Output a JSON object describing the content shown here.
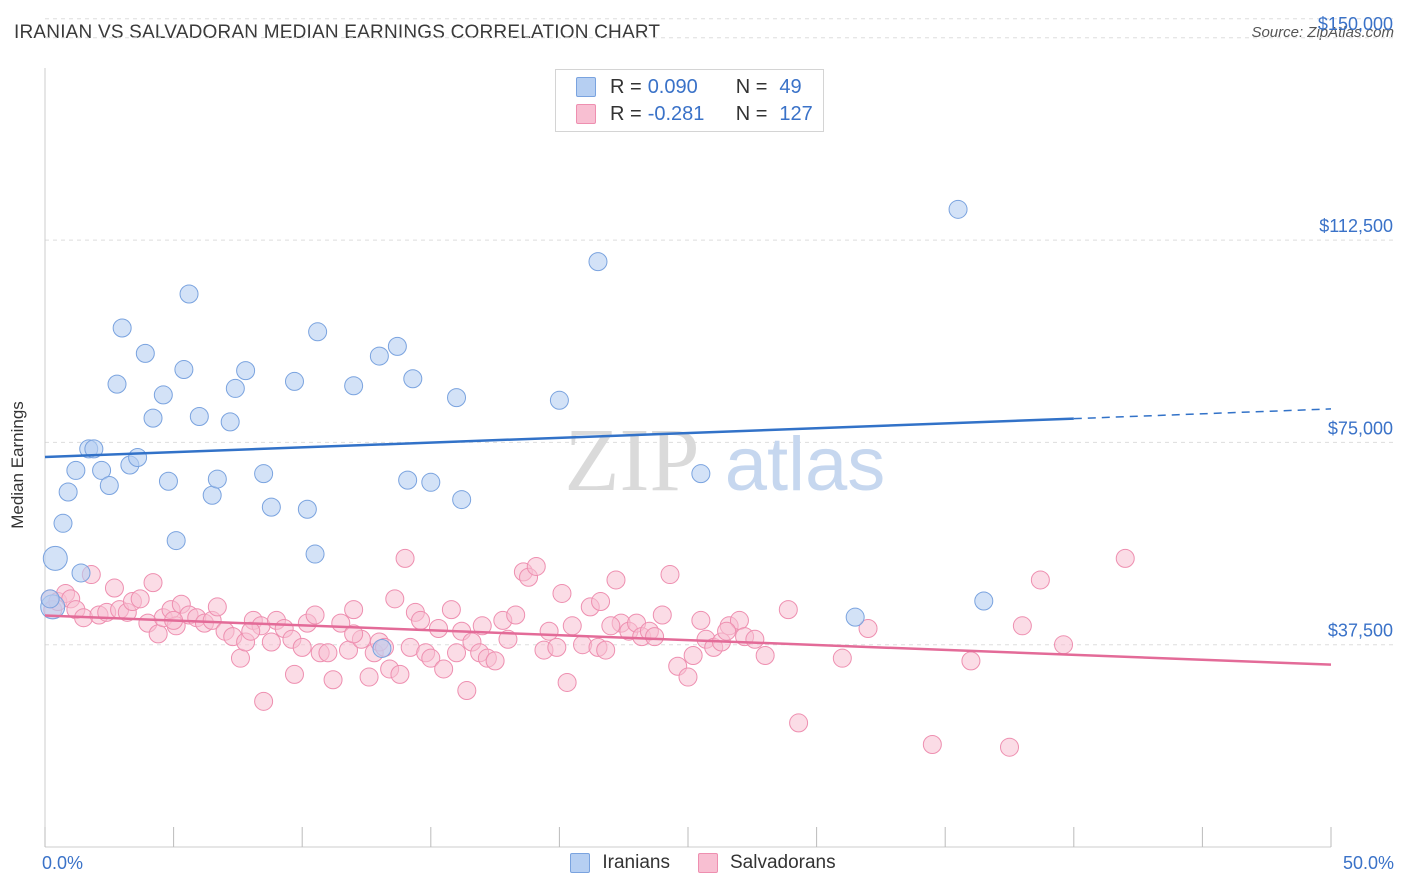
{
  "title": "IRANIAN VS SALVADORAN MEDIAN EARNINGS CORRELATION CHART",
  "source": "Source: ZipAtlas.com",
  "watermark": {
    "zip": "ZIP",
    "atlas": "atlas"
  },
  "colors": {
    "blue_fill": "#b6cff2",
    "blue_stroke": "#7aa3df",
    "blue_line": "#3272c8",
    "pink_fill": "#f8bfd2",
    "pink_stroke": "#ee8fb0",
    "pink_line": "#e36b98",
    "axis_text": "#3a72c8",
    "grid": "#dddddd"
  },
  "legend": {
    "rows": [
      {
        "r_label": "R =",
        "r_value": "0.090",
        "n_label": "N =",
        "n_value": "49"
      },
      {
        "r_label": "R =",
        "r_value": "-0.281",
        "n_label": "N =",
        "n_value": "127"
      }
    ]
  },
  "bottom_legend": [
    "Iranians",
    "Salvadorans"
  ],
  "chart_data": {
    "type": "scatter",
    "title": "IRANIAN VS SALVADORAN MEDIAN EARNINGS CORRELATION CHART",
    "xlabel": "",
    "ylabel": "Median Earnings",
    "xlim": [
      0,
      50
    ],
    "ylim": [
      0,
      157000
    ],
    "x_ticks": [
      0,
      5,
      10,
      15,
      20,
      25,
      30,
      35,
      40,
      45,
      50
    ],
    "x_tick_labels_shown": {
      "0": "0.0%",
      "50": "50.0%"
    },
    "y_ticks": [
      37500,
      75000,
      112500,
      150000
    ],
    "y_tick_labels": [
      "$37,500",
      "$75,000",
      "$112,500",
      "$150,000"
    ],
    "grid": true,
    "legend_position": "top-center",
    "series": [
      {
        "name": "Iranians",
        "r": 0.09,
        "n": 49,
        "trend": {
          "x_start": 0,
          "y_start": 72300,
          "x_end": 40,
          "y_end": 79400,
          "dashed_to_x": 50,
          "dashed_to_y": 81200
        },
        "points": [
          [
            0.3,
            44500
          ],
          [
            0.4,
            53500
          ],
          [
            0.7,
            60000
          ],
          [
            0.9,
            65800
          ],
          [
            1.2,
            69800
          ],
          [
            1.4,
            50800
          ],
          [
            1.7,
            73800
          ],
          [
            1.9,
            73800
          ],
          [
            2.2,
            69800
          ],
          [
            2.5,
            67000
          ],
          [
            2.8,
            85800
          ],
          [
            3.0,
            96200
          ],
          [
            3.3,
            70800
          ],
          [
            3.6,
            72200
          ],
          [
            3.9,
            91500
          ],
          [
            4.2,
            79500
          ],
          [
            4.6,
            83800
          ],
          [
            4.8,
            67800
          ],
          [
            5.1,
            56800
          ],
          [
            5.4,
            88500
          ],
          [
            5.6,
            102500
          ],
          [
            6.0,
            79800
          ],
          [
            6.5,
            65200
          ],
          [
            6.7,
            68200
          ],
          [
            7.2,
            78800
          ],
          [
            7.4,
            85000
          ],
          [
            7.8,
            88300
          ],
          [
            8.5,
            69200
          ],
          [
            8.8,
            63000
          ],
          [
            9.7,
            86300
          ],
          [
            10.2,
            62600
          ],
          [
            10.6,
            95500
          ],
          [
            10.5,
            54300
          ],
          [
            12.0,
            85500
          ],
          [
            13.0,
            91000
          ],
          [
            13.7,
            92800
          ],
          [
            13.1,
            36800
          ],
          [
            14.3,
            86800
          ],
          [
            14.1,
            68000
          ],
          [
            15.0,
            67600
          ],
          [
            16.0,
            83300
          ],
          [
            16.2,
            64400
          ],
          [
            20.0,
            82800
          ],
          [
            21.5,
            108500
          ],
          [
            25.5,
            69200
          ],
          [
            31.5,
            42600
          ],
          [
            35.5,
            118200
          ],
          [
            36.5,
            45600
          ],
          [
            0.2,
            46000
          ]
        ]
      },
      {
        "name": "Salvadorans",
        "r": -0.281,
        "n": 127,
        "trend": {
          "x_start": 0,
          "y_start": 42900,
          "x_end": 50,
          "y_end": 33800
        },
        "points": [
          [
            0.2,
            46000
          ],
          [
            0.3,
            44000
          ],
          [
            0.5,
            45500
          ],
          [
            0.8,
            47000
          ],
          [
            1.0,
            46000
          ],
          [
            1.2,
            44000
          ],
          [
            1.5,
            42500
          ],
          [
            1.8,
            50500
          ],
          [
            2.1,
            43000
          ],
          [
            2.4,
            43500
          ],
          [
            2.7,
            48000
          ],
          [
            2.9,
            44000
          ],
          [
            3.2,
            43500
          ],
          [
            3.4,
            45500
          ],
          [
            3.7,
            46000
          ],
          [
            4.0,
            41500
          ],
          [
            4.2,
            49000
          ],
          [
            4.4,
            39500
          ],
          [
            4.6,
            42500
          ],
          [
            4.9,
            44000
          ],
          [
            5.1,
            41000
          ],
          [
            5.3,
            45000
          ],
          [
            5.6,
            43000
          ],
          [
            5.9,
            42500
          ],
          [
            6.2,
            41500
          ],
          [
            6.5,
            42000
          ],
          [
            6.7,
            44500
          ],
          [
            7.0,
            40000
          ],
          [
            7.3,
            39000
          ],
          [
            7.6,
            35000
          ],
          [
            7.8,
            38000
          ],
          [
            8.1,
            42000
          ],
          [
            8.4,
            41000
          ],
          [
            8.5,
            27000
          ],
          [
            8.8,
            38000
          ],
          [
            9.0,
            42000
          ],
          [
            9.3,
            40500
          ],
          [
            9.6,
            38500
          ],
          [
            9.7,
            32000
          ],
          [
            10.0,
            37000
          ],
          [
            10.2,
            41500
          ],
          [
            10.5,
            43000
          ],
          [
            10.7,
            36000
          ],
          [
            11.0,
            36000
          ],
          [
            11.2,
            31000
          ],
          [
            11.5,
            41500
          ],
          [
            11.8,
            36500
          ],
          [
            12.0,
            44000
          ],
          [
            12.3,
            38500
          ],
          [
            12.6,
            31500
          ],
          [
            12.8,
            36000
          ],
          [
            13.0,
            38000
          ],
          [
            13.2,
            37000
          ],
          [
            13.4,
            33000
          ],
          [
            13.6,
            46000
          ],
          [
            13.8,
            32000
          ],
          [
            14.0,
            53500
          ],
          [
            14.2,
            37000
          ],
          [
            14.4,
            43500
          ],
          [
            14.6,
            42000
          ],
          [
            14.8,
            36000
          ],
          [
            15.0,
            35000
          ],
          [
            15.3,
            40500
          ],
          [
            15.5,
            33000
          ],
          [
            15.8,
            44000
          ],
          [
            16.0,
            36000
          ],
          [
            16.2,
            40000
          ],
          [
            16.4,
            29000
          ],
          [
            16.6,
            38000
          ],
          [
            16.9,
            36000
          ],
          [
            17.2,
            35000
          ],
          [
            17.5,
            34500
          ],
          [
            17.8,
            42000
          ],
          [
            18.0,
            38500
          ],
          [
            18.3,
            43000
          ],
          [
            18.6,
            51000
          ],
          [
            18.8,
            50000
          ],
          [
            19.1,
            52000
          ],
          [
            19.4,
            36500
          ],
          [
            19.6,
            40000
          ],
          [
            19.9,
            37000
          ],
          [
            20.1,
            47000
          ],
          [
            20.3,
            30500
          ],
          [
            20.5,
            41000
          ],
          [
            20.9,
            37500
          ],
          [
            21.2,
            44500
          ],
          [
            21.5,
            37000
          ],
          [
            21.6,
            45500
          ],
          [
            21.8,
            36500
          ],
          [
            22.2,
            49500
          ],
          [
            22.4,
            41500
          ],
          [
            22.7,
            40000
          ],
          [
            23.0,
            41500
          ],
          [
            23.2,
            39000
          ],
          [
            23.5,
            40000
          ],
          [
            23.7,
            39000
          ],
          [
            24.0,
            43000
          ],
          [
            24.3,
            50500
          ],
          [
            24.6,
            33500
          ],
          [
            25.0,
            31500
          ],
          [
            25.2,
            35500
          ],
          [
            25.5,
            42000
          ],
          [
            25.7,
            38500
          ],
          [
            26.0,
            37000
          ],
          [
            26.3,
            38000
          ],
          [
            26.6,
            41000
          ],
          [
            27.0,
            42000
          ],
          [
            27.2,
            39000
          ],
          [
            27.6,
            38500
          ],
          [
            28.0,
            35500
          ],
          [
            28.9,
            44000
          ],
          [
            29.3,
            23000
          ],
          [
            31.0,
            35000
          ],
          [
            32.0,
            40500
          ],
          [
            34.5,
            19000
          ],
          [
            36.0,
            34500
          ],
          [
            37.5,
            18500
          ],
          [
            38.0,
            41000
          ],
          [
            38.7,
            49500
          ],
          [
            39.6,
            37500
          ],
          [
            42.0,
            53500
          ],
          [
            5.0,
            42000
          ],
          [
            8.0,
            40000
          ],
          [
            12.0,
            39500
          ],
          [
            17.0,
            41000
          ],
          [
            22.0,
            41000
          ],
          [
            26.5,
            40000
          ]
        ]
      }
    ]
  }
}
